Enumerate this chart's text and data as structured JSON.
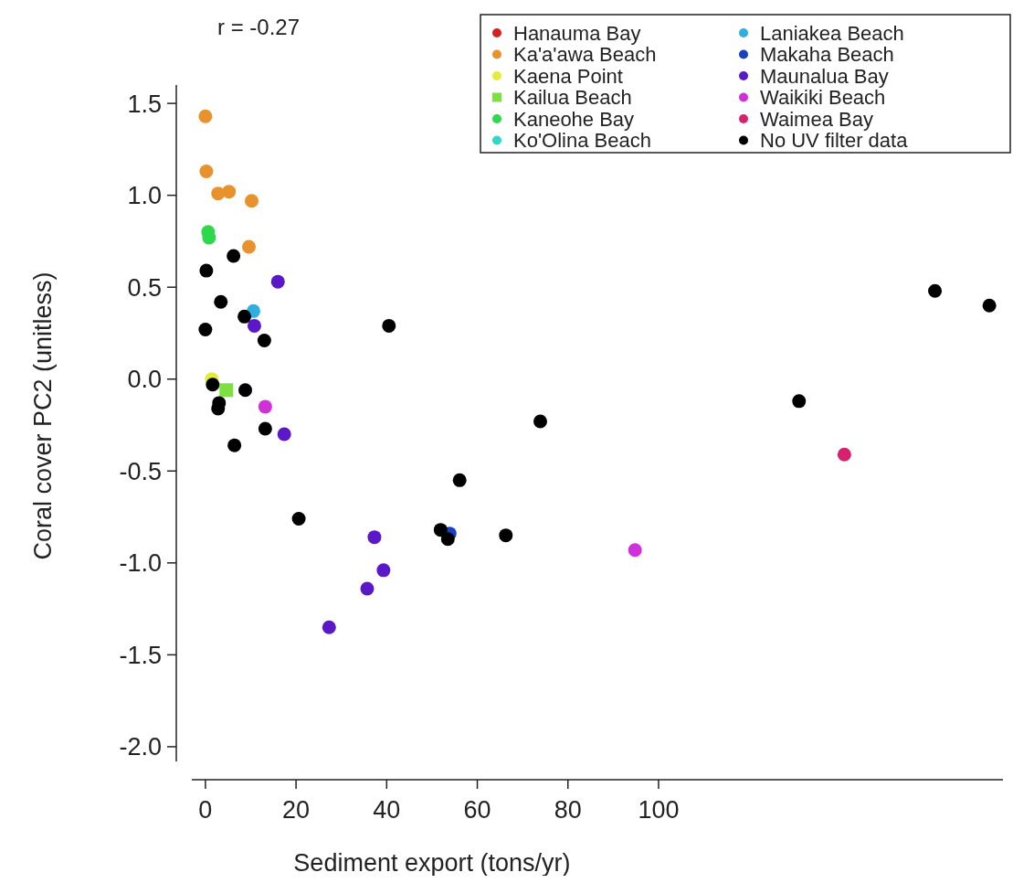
{
  "chart_data": {
    "type": "scatter",
    "title": "r = -0.27",
    "xlabel": "Sediment export (tons/yr)",
    "ylabel": "Coral cover PC2 (unitless)",
    "xlim": [
      -3,
      176
    ],
    "ylim": [
      -2.08,
      1.6
    ],
    "xticks": [
      0,
      20,
      40,
      60,
      80,
      100
    ],
    "yticks": [
      {
        "value": -2,
        "label": "-2.0"
      },
      {
        "value": -1.5,
        "label": "-1.5"
      },
      {
        "value": -1,
        "label": "-1.0"
      },
      {
        "value": -0.5,
        "label": "-0.5"
      },
      {
        "value": 0,
        "label": "0.0"
      },
      {
        "value": 0.5,
        "label": "0.5"
      },
      {
        "value": 1,
        "label": "1.0"
      },
      {
        "value": 1.5,
        "label": "1.5"
      }
    ],
    "grid": false,
    "legend": "top right",
    "marker": "circle",
    "series": [
      {
        "name": "Hanauma Bay",
        "color": "#d42020"
      },
      {
        "name": "Ka'a'awa Beach",
        "color": "#e8922e",
        "x": [
          0,
          0.2,
          2.8,
          5.2,
          10.2,
          9.6
        ],
        "values": [
          1.43,
          1.13,
          1.01,
          1.02,
          0.97,
          0.72
        ]
      },
      {
        "name": "Kaena Point",
        "color": "#e4ec3a",
        "x": [
          1.4
        ],
        "values": [
          0.0
        ]
      },
      {
        "name": "Kailua Beach",
        "color": "#7ee040",
        "marker": "square",
        "x": [
          4.6
        ],
        "values": [
          -0.06
        ]
      },
      {
        "name": "Kaneohe Bay",
        "color": "#2ed84a",
        "x": [
          0.6,
          0.8
        ],
        "values": [
          0.8,
          0.77
        ]
      },
      {
        "name": "Ko'Olina Beach",
        "color": "#30d8c8"
      },
      {
        "name": "Laniakea Beach",
        "color": "#30aee0",
        "x": [
          10.6
        ],
        "values": [
          0.37
        ]
      },
      {
        "name": "Makaha Beach",
        "color": "#1840c0",
        "x": [
          53.9
        ],
        "values": [
          -0.84
        ]
      },
      {
        "name": "Maunalua Bay",
        "color": "#5a18c8",
        "x": [
          16,
          10.8,
          17.4,
          37.3,
          39.3,
          35.7,
          27.3
        ],
        "values": [
          0.53,
          0.29,
          -0.3,
          -0.86,
          -1.04,
          -1.14,
          -1.35
        ]
      },
      {
        "name": "Waikiki Beach",
        "color": "#d030d8",
        "x": [
          13.2,
          94.8
        ],
        "values": [
          -0.15,
          -0.93
        ]
      },
      {
        "name": "Waimea Bay",
        "color": "#d8206e",
        "x": [
          141
        ],
        "values": [
          -0.41
        ]
      },
      {
        "name": "No UV filter data",
        "color": "#000000",
        "x": [
          6.2,
          0.2,
          3.4,
          8.6,
          0,
          13,
          40.5,
          8.8,
          1.6,
          3.0,
          2.8,
          13.2,
          6.4,
          20.6,
          73.9,
          56.1,
          51.9,
          53.5,
          66.3,
          161,
          173,
          131
        ],
        "values": [
          0.67,
          0.59,
          0.42,
          0.34,
          0.27,
          0.21,
          0.29,
          -0.06,
          -0.03,
          -0.13,
          -0.16,
          -0.27,
          -0.36,
          -0.76,
          -0.23,
          -0.55,
          -0.82,
          -0.87,
          -0.85,
          0.48,
          0.4,
          -0.12
        ]
      }
    ]
  }
}
